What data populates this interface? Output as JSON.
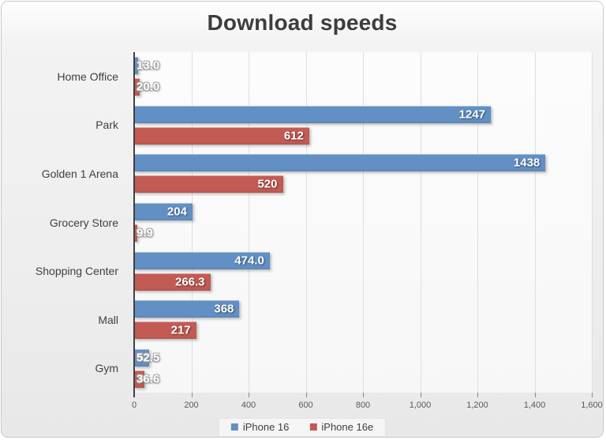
{
  "chart_data": {
    "type": "bar",
    "orientation": "horizontal",
    "title": "Download speeds",
    "categories": [
      "Home Office",
      "Park",
      "Golden 1 Arena",
      "Grocery Store",
      "Shopping Center",
      "Mall",
      "Gym"
    ],
    "series": [
      {
        "name": "iPhone 16",
        "color": "#6290C4",
        "values": [
          13.0,
          1247,
          1438,
          204,
          474.0,
          368,
          52.5
        ],
        "labels": [
          "13.0",
          "1247",
          "1438",
          "204",
          "474.0",
          "368",
          "52.5"
        ]
      },
      {
        "name": "iPhone 16e",
        "color": "#C25B54",
        "values": [
          20.0,
          612,
          520,
          9.9,
          266.3,
          217,
          36.6
        ],
        "labels": [
          "20.0",
          "612",
          "520",
          "9.9",
          "266.3",
          "217",
          "36.6"
        ]
      }
    ],
    "x_axis": {
      "min": 0,
      "max": 1600,
      "tick_interval": 200,
      "tick_labels": [
        "0",
        "200",
        "400",
        "600",
        "800",
        "1,000",
        "1,200",
        "1,400",
        "1,600"
      ]
    },
    "legend_position": "bottom",
    "grid": true,
    "label_inside_min": 200,
    "colors": {
      "title_text": "#3D3D3D",
      "category_text": "#404040",
      "tick_text": "#595959",
      "axis_line": "#404040",
      "gridline": "#DFDFDF",
      "data_label_text": "#FFFFFF"
    }
  }
}
